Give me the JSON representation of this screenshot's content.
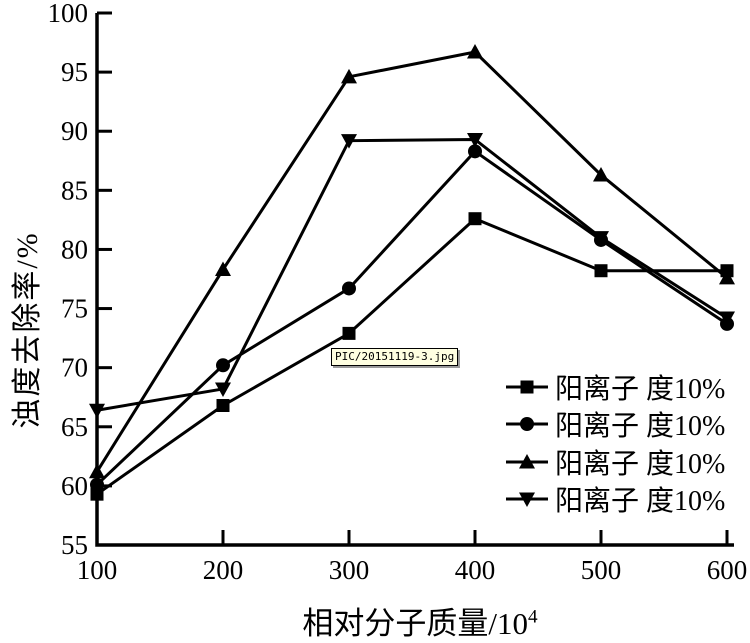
{
  "figure": {
    "background": "#ffffff",
    "watermark": {
      "text": "PIC/20151119-3.jpg",
      "bg_color": "#ffffe1",
      "border_color": "#000000"
    }
  },
  "chart_data": {
    "type": "line",
    "title": "",
    "xlabel_main": "相对分子质量/10",
    "xlabel_sup": "4",
    "ylabel": "浊度去除率/%",
    "x": [
      100,
      200,
      300,
      400,
      500,
      600
    ],
    "xlim": [
      100,
      600
    ],
    "ylim": [
      55,
      100
    ],
    "x_ticks": [
      100,
      200,
      300,
      400,
      500,
      600
    ],
    "y_ticks": [
      55,
      60,
      65,
      70,
      75,
      80,
      85,
      90,
      95,
      100
    ],
    "grid": false,
    "line_color": "#000000",
    "legend_position": "inside-lower-right",
    "series": [
      {
        "name": "阳离子 度10%",
        "marker": "square",
        "values": [
          59.3,
          66.8,
          72.9,
          82.6,
          78.2,
          78.2
        ]
      },
      {
        "name": "阳离子 度10%",
        "marker": "circle",
        "values": [
          60.1,
          70.2,
          76.7,
          88.3,
          80.8,
          73.7
        ]
      },
      {
        "name": "阳离子 度10%",
        "marker": "triangle-up",
        "values": [
          61.2,
          78.3,
          94.6,
          96.7,
          86.3,
          77.6
        ]
      },
      {
        "name": "阳离子 度10%",
        "marker": "triangle-down",
        "values": [
          66.4,
          68.2,
          89.2,
          89.3,
          81.0,
          74.2
        ]
      }
    ]
  }
}
